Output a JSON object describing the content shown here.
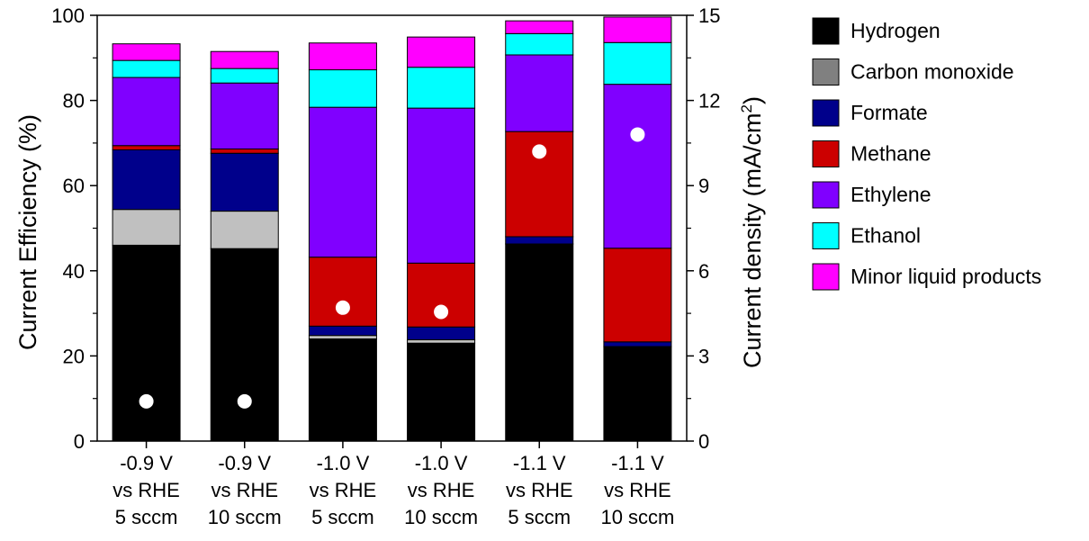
{
  "chart_data": {
    "type": "bar",
    "stacked": true,
    "categories": [
      [
        "-0.9 V",
        "vs RHE",
        "5 sccm"
      ],
      [
        "-0.9 V",
        "vs RHE",
        "10 sccm"
      ],
      [
        "-1.0 V",
        "vs RHE",
        "5 sccm"
      ],
      [
        "-1.0 V",
        "vs RHE",
        "10 sccm"
      ],
      [
        "-1.1 V",
        "vs RHE",
        "5 sccm"
      ],
      [
        "-1.1 V",
        "vs RHE",
        "10 sccm"
      ]
    ],
    "ylabel": "Current Efficiency (%)",
    "ylim": [
      0,
      100
    ],
    "yticks": [
      "0",
      "20",
      "40",
      "60",
      "80",
      "100"
    ],
    "y2label_main": "Current density (mA/cm",
    "y2label_sup": "2",
    "y2label_close": ")",
    "y2lim": [
      0,
      15
    ],
    "y2ticks": [
      "0",
      "3",
      "6",
      "9",
      "12",
      "15"
    ],
    "legend_position": "right",
    "series": [
      {
        "name": "Hydrogen",
        "color": "#000000",
        "values": [
          46.0,
          45.2,
          24.0,
          23.0,
          46.3,
          22.2
        ]
      },
      {
        "name": "Carbon monoxide",
        "color": "#c0c0c0",
        "values": [
          8.4,
          8.8,
          0.8,
          0.8,
          0.0,
          0.0
        ]
      },
      {
        "name": "Formate",
        "color": "#00008b",
        "values": [
          14.0,
          13.6,
          2.2,
          3.0,
          1.7,
          1.1
        ]
      },
      {
        "name": "Methane",
        "color": "#cc0000",
        "values": [
          1.0,
          1.0,
          16.2,
          15.0,
          24.7,
          22.0
        ]
      },
      {
        "name": "Ethylene",
        "color": "#8000ff",
        "values": [
          16.0,
          15.5,
          35.2,
          36.4,
          18.0,
          38.5
        ]
      },
      {
        "name": "Ethanol",
        "color": "#00ffff",
        "values": [
          4.0,
          3.4,
          8.8,
          9.6,
          5.0,
          9.8
        ]
      },
      {
        "name": "Minor liquid products",
        "color": "#ff00ff",
        "values": [
          3.9,
          4.0,
          6.3,
          7.1,
          3.0,
          6.0
        ]
      }
    ],
    "legend_swatches": {
      "Carbon monoxide": "#808080"
    },
    "current_density": [
      1.4,
      1.4,
      4.7,
      4.55,
      10.2,
      10.8
    ],
    "marker_color": "#ffffff"
  }
}
